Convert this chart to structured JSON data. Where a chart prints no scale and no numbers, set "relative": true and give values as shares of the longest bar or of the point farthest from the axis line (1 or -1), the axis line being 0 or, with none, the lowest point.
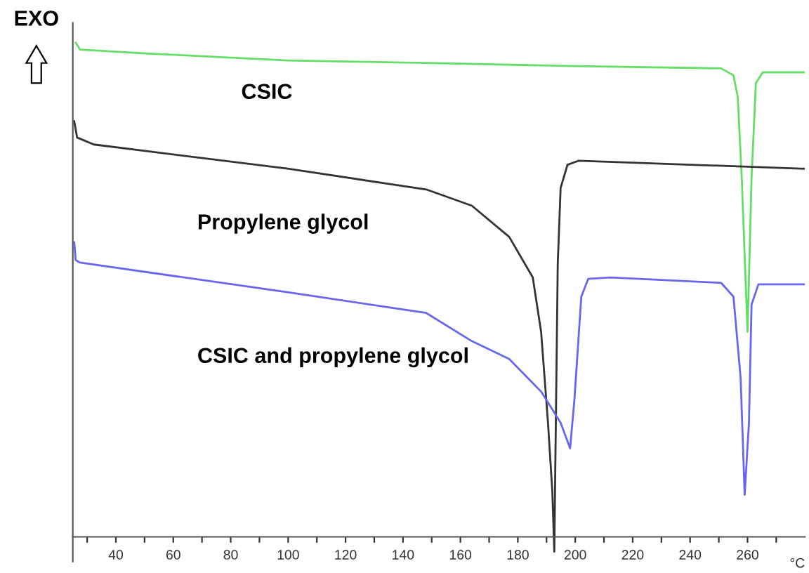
{
  "chart_data": {
    "type": "line",
    "relative": true,
    "xlabel": "°C",
    "xlim": [
      25,
      280
    ],
    "xticks": [
      {
        "value": 30,
        "label": null
      },
      40,
      {
        "value": 50,
        "label": null
      },
      60,
      {
        "value": 70,
        "label": null
      },
      80,
      {
        "value": 90,
        "label": null
      },
      100,
      {
        "value": 110,
        "label": null
      },
      120,
      {
        "value": 130,
        "label": null
      },
      140,
      {
        "value": 150,
        "label": null
      },
      160,
      {
        "value": 170,
        "label": null
      },
      180,
      {
        "value": 190,
        "label": null
      },
      200,
      {
        "value": 210,
        "label": null
      },
      220,
      {
        "value": 230,
        "label": null
      },
      240,
      {
        "value": 250,
        "label": null
      },
      260,
      {
        "value": 270,
        "label": null
      }
    ],
    "tick_labels": "x",
    "grid": false,
    "marker": "none",
    "line_style": "solid",
    "annotations": [
      "EXO"
    ],
    "series": [
      {
        "name": "CSIC",
        "color": "#66dd66",
        "x": [
          26.0,
          27.5,
          51.6,
          99.8,
          148.1,
          196.3,
          250.8,
          254.2,
          255.1,
          256.6,
          258.0,
          260.0,
          261.4,
          262.9,
          265.3,
          279.7
        ],
        "values": [
          1.0,
          0.986,
          0.978,
          0.964,
          0.959,
          0.953,
          0.948,
          0.937,
          0.934,
          0.89,
          0.725,
          0.415,
          0.725,
          0.918,
          0.94,
          0.94
        ]
      },
      {
        "name": "Propylene glycol",
        "color": "#333333",
        "x": [
          25.5,
          26.5,
          32.3,
          51.6,
          99.8,
          148.1,
          164.0,
          177.0,
          185.2,
          188.1,
          190.5,
          192.0,
          192.7,
          193.9,
          194.9,
          197.3,
          201.1,
          279.7
        ],
        "values": [
          0.841,
          0.808,
          0.794,
          0.78,
          0.745,
          0.703,
          0.67,
          0.607,
          0.525,
          0.415,
          0.231,
          0.093,
          -0.03,
          0.552,
          0.706,
          0.753,
          0.761,
          0.745
        ]
      },
      {
        "name": "CSIC and propylene glycol",
        "color": "#6666ee",
        "x": [
          25.5,
          26.0,
          27.5,
          99.8,
          148.1,
          164.0,
          177.0,
          188.1,
          194.9,
          198.2,
          199.7,
          202.1,
          204.5,
          212.2,
          250.8,
          255.1,
          257.6,
          259.0,
          260.5,
          261.4,
          263.8,
          279.7
        ],
        "values": [
          0.596,
          0.56,
          0.555,
          0.495,
          0.453,
          0.396,
          0.36,
          0.294,
          0.231,
          0.179,
          0.277,
          0.486,
          0.522,
          0.525,
          0.514,
          0.486,
          0.321,
          0.085,
          0.231,
          0.47,
          0.511,
          0.511
        ]
      }
    ]
  }
}
